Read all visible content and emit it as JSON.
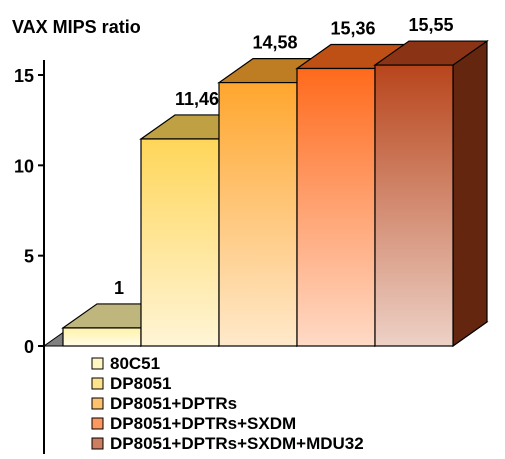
{
  "chart_data": {
    "type": "bar",
    "title": "VAX MIPS ratio",
    "xlabel": "",
    "ylabel": "",
    "ylim": [
      0,
      15
    ],
    "yticks": [
      0,
      5,
      10,
      15
    ],
    "style": "3d",
    "grid": false,
    "legend_placement": "bottom",
    "series": [
      {
        "name": "80C51",
        "value": 1,
        "label": "1",
        "color": "#fff2a8"
      },
      {
        "name": "DP8051",
        "value": 11.46,
        "label": "11,46",
        "color": "#ffd65a"
      },
      {
        "name": "DP8051+DPTRs",
        "value": 14.58,
        "label": "14,58",
        "color": "#ffa62e"
      },
      {
        "name": "DP8051+DPTRs+SXDM",
        "value": 15.36,
        "label": "15,36",
        "color": "#ff6a1c"
      },
      {
        "name": "DP8051+DPTRs+SXDM+MDU32",
        "value": 15.55,
        "label": "15,55",
        "color": "#b8451c"
      }
    ]
  }
}
